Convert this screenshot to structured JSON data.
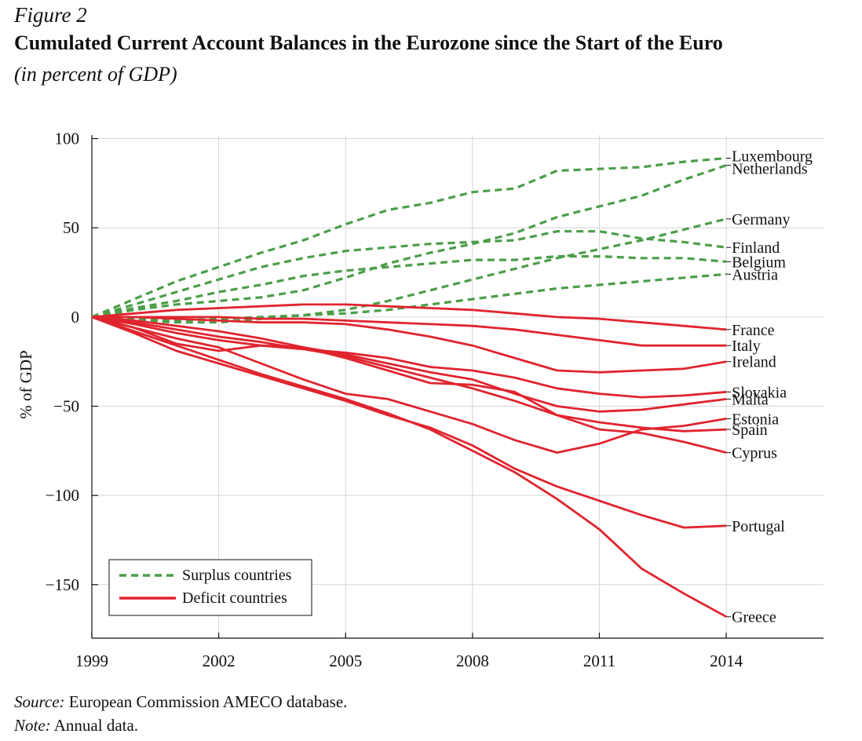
{
  "header": {
    "figure_label": "Figure 2",
    "title": "Cumulated Current Account Balances in the Eurozone since the Start of the Euro",
    "subtitle": "(in percent of GDP)"
  },
  "footer": {
    "source_label": "Source:",
    "source_text": "European Commission AMECO database.",
    "note_label": "Note:",
    "note_text": "Annual data."
  },
  "colors": {
    "surplus": "#4a9e48",
    "deficit": "#e0242e",
    "grid": "#d6d6d6"
  },
  "chart_data": {
    "type": "line",
    "title": "Cumulated Current Account Balances in the Eurozone since the Start of the Euro",
    "ylabel": "% of GDP",
    "xlabel": "",
    "xlim": [
      1999,
      2016.3
    ],
    "ylim": [
      -180,
      102
    ],
    "x_ticks": [
      1999,
      2002,
      2005,
      2008,
      2011,
      2014
    ],
    "x_tick_labels": [
      "1999",
      "2002",
      "2005",
      "2008",
      "2011",
      "2014"
    ],
    "y_ticks": [
      100,
      50,
      0,
      -50,
      -100,
      -150
    ],
    "y_tick_labels": [
      "100",
      "50",
      "0",
      "−50",
      "−100",
      "−150"
    ],
    "grid": true,
    "legend": {
      "position": "bottom-left",
      "entries": [
        {
          "label": "Surplus countries",
          "group": "surplus",
          "style": "dashed"
        },
        {
          "label": "Deficit countries",
          "group": "deficit",
          "style": "solid"
        }
      ]
    },
    "x": [
      1999,
      2000,
      2001,
      2002,
      2003,
      2004,
      2005,
      2006,
      2007,
      2008,
      2009,
      2010,
      2011,
      2012,
      2013,
      2014
    ],
    "series": [
      {
        "name": "Luxembourg",
        "group": "surplus",
        "values": [
          0,
          10,
          20,
          28,
          36,
          43,
          52,
          60,
          64,
          70,
          72,
          82,
          83,
          84,
          87,
          89
        ]
      },
      {
        "name": "Netherlands",
        "group": "surplus",
        "values": [
          0,
          4,
          7,
          9,
          11,
          15,
          22,
          30,
          36,
          41,
          47,
          56,
          62,
          68,
          77,
          85
        ]
      },
      {
        "name": "Germany",
        "group": "surplus",
        "values": [
          0,
          -2,
          -3,
          -3,
          -1,
          1,
          4,
          9,
          15,
          21,
          27,
          33,
          38,
          43,
          49,
          55
        ]
      },
      {
        "name": "Finland",
        "group": "surplus",
        "values": [
          0,
          7,
          14,
          21,
          28,
          33,
          37,
          39,
          41,
          42,
          43,
          48,
          48,
          44,
          42,
          39
        ]
      },
      {
        "name": "Belgium",
        "group": "surplus",
        "values": [
          0,
          5,
          9,
          14,
          18,
          23,
          26,
          28,
          30,
          32,
          32,
          34,
          34,
          33,
          33,
          31
        ]
      },
      {
        "name": "Austria",
        "group": "surplus",
        "values": [
          0,
          -1,
          -2,
          -1,
          0,
          1,
          2,
          4,
          7,
          10,
          13,
          16,
          18,
          20,
          22,
          24
        ]
      },
      {
        "name": "France",
        "group": "deficit",
        "values": [
          0,
          2,
          4,
          5,
          6,
          7,
          7,
          6,
          5,
          4,
          2,
          0,
          -1,
          -3,
          -5,
          -7
        ]
      },
      {
        "name": "Italy",
        "group": "deficit",
        "values": [
          0,
          0,
          0,
          0,
          -1,
          -1,
          -2,
          -3,
          -4,
          -5,
          -7,
          -10,
          -13,
          -16,
          -16,
          -16
        ]
      },
      {
        "name": "Ireland",
        "group": "deficit",
        "values": [
          0,
          0,
          -1,
          -2,
          -3,
          -3,
          -4,
          -7,
          -11,
          -16,
          -23,
          -30,
          -31,
          -30,
          -29,
          -25
        ]
      },
      {
        "name": "Slovakia",
        "group": "deficit",
        "values": [
          0,
          -4,
          -9,
          -13,
          -16,
          -18,
          -20,
          -23,
          -28,
          -30,
          -34,
          -40,
          -43,
          -45,
          -44,
          -42
        ]
      },
      {
        "name": "Malta",
        "group": "deficit",
        "values": [
          0,
          -6,
          -15,
          -19,
          -16,
          -17,
          -21,
          -26,
          -31,
          -35,
          -43,
          -50,
          -53,
          -52,
          -49,
          -46
        ]
      },
      {
        "name": "Estonia",
        "group": "deficit",
        "values": [
          0,
          -6,
          -12,
          -17,
          -26,
          -35,
          -43,
          -46,
          -53,
          -60,
          -69,
          -76,
          -71,
          -63,
          -61,
          -57
        ]
      },
      {
        "name": "Spain",
        "group": "deficit",
        "values": [
          0,
          -3,
          -7,
          -11,
          -14,
          -18,
          -22,
          -28,
          -34,
          -40,
          -47,
          -55,
          -59,
          -62,
          -64,
          -63
        ]
      },
      {
        "name": "Cyprus",
        "group": "deficit",
        "values": [
          0,
          -2,
          -5,
          -8,
          -12,
          -17,
          -23,
          -30,
          -37,
          -38,
          -42,
          -55,
          -63,
          -65,
          -70,
          -76
        ]
      },
      {
        "name": "Portugal",
        "group": "deficit",
        "values": [
          0,
          -9,
          -19,
          -26,
          -33,
          -40,
          -47,
          -55,
          -62,
          -72,
          -85,
          -95,
          -103,
          -111,
          -118,
          -117
        ]
      },
      {
        "name": "Greece",
        "group": "deficit",
        "values": [
          0,
          -8,
          -16,
          -24,
          -32,
          -39,
          -46,
          -54,
          -63,
          -75,
          -87,
          -102,
          -119,
          -141,
          -155,
          -168
        ]
      }
    ]
  }
}
